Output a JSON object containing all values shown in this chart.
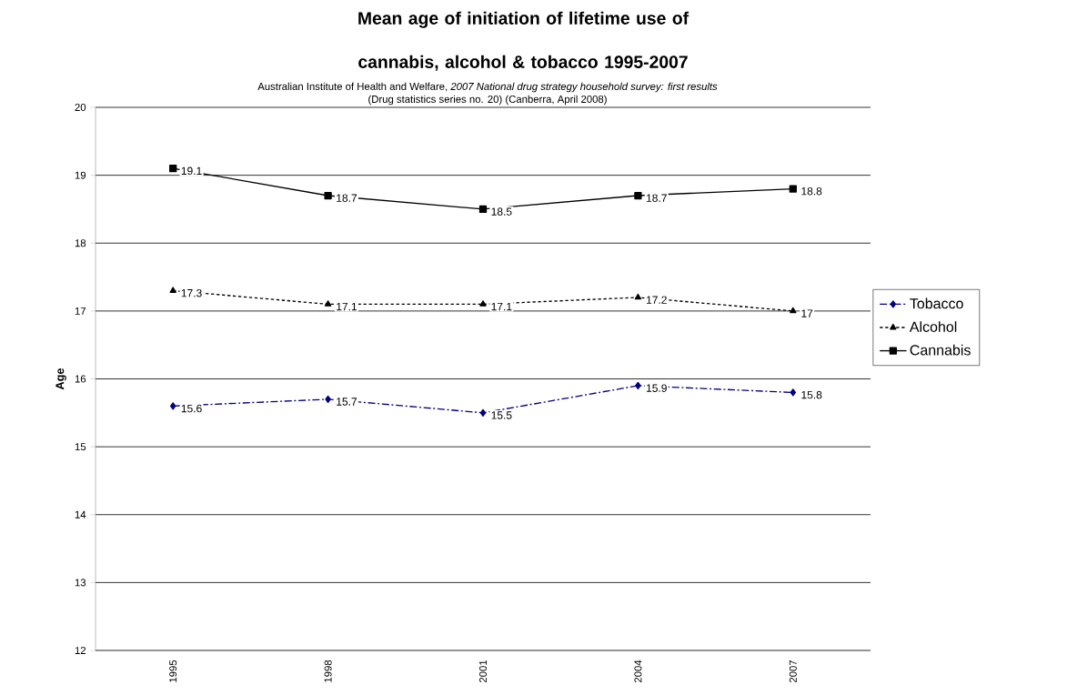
{
  "chart_data": {
    "type": "line",
    "title": "Mean age of initiation of lifetime  use of cannabis, alcohol & tobacco 1995-2007",
    "subtitle": "Australian Institute of Health and Welfare, *2007 National drug strategy household survey: first results*",
    "annotations": [
      "(Drug statistics series no. 20) (Canberra, April 2008)"
    ],
    "ylabel": "Age",
    "categories": [
      "1995",
      "1998",
      "2001",
      "2004",
      "2007"
    ],
    "series": [
      {
        "name": "Tobacco",
        "color": "#000080",
        "marker": "diamond",
        "line_style": "dashed",
        "values": [
          15.6,
          15.7,
          15.5,
          15.9,
          15.8
        ]
      },
      {
        "name": "Alcohol",
        "color": "#000000",
        "marker": "triangle",
        "line_style": "dotted",
        "values": [
          17.3,
          17.1,
          17.1,
          17.2,
          17
        ]
      },
      {
        "name": "Cannabis",
        "color": "#000000",
        "marker": "square",
        "line_style": "solid",
        "values": [
          19.1,
          18.7,
          18.5,
          18.7,
          18.8
        ]
      }
    ],
    "ylim": [
      12,
      20
    ],
    "yticks": [
      12,
      13,
      14,
      15,
      16,
      17,
      18,
      19,
      20
    ],
    "grid": "y",
    "legend": "right",
    "data_labels": true
  }
}
